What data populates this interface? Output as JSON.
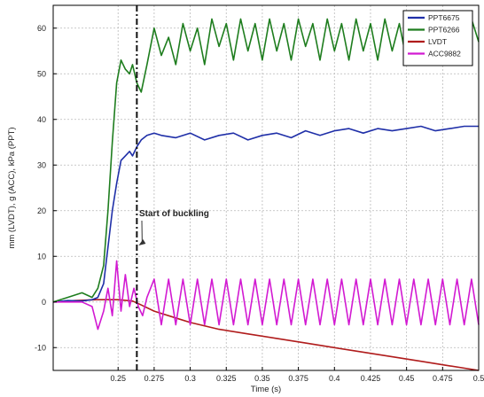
{
  "chart_data": {
    "type": "line",
    "xlabel": "Time (s)",
    "ylabel": "mm (LVDT), g (ACC), kPa (PPT)",
    "xlim": [
      0.205,
      0.5
    ],
    "ylim": [
      -15,
      65
    ],
    "xticks": [
      0.25,
      0.275,
      0.3,
      0.325,
      0.35,
      0.375,
      0.4,
      0.425,
      0.45,
      0.475,
      0.5
    ],
    "xtick_labels": [
      "0.25",
      "0.275",
      "0.3",
      "0.325",
      "0.35",
      "0.375",
      "0.4",
      "0.425",
      "0.45",
      "0.475",
      "0.5"
    ],
    "yticks": [
      -10,
      0,
      10,
      20,
      30,
      40,
      50,
      60
    ],
    "ytick_labels": [
      "-10",
      "0",
      "10",
      "20",
      "30",
      "40",
      "50",
      "60"
    ],
    "grid": true,
    "legend_position": "top-right",
    "annotation": {
      "text": "Start of buckling",
      "x": 0.263
    },
    "series": [
      {
        "name": "PPT6675",
        "color": "#1f2fa8",
        "x": [
          0.205,
          0.215,
          0.225,
          0.232,
          0.236,
          0.24,
          0.243,
          0.246,
          0.249,
          0.252,
          0.255,
          0.258,
          0.26,
          0.263,
          0.266,
          0.27,
          0.275,
          0.28,
          0.29,
          0.3,
          0.31,
          0.32,
          0.33,
          0.34,
          0.35,
          0.36,
          0.37,
          0.38,
          0.39,
          0.4,
          0.41,
          0.42,
          0.43,
          0.44,
          0.45,
          0.46,
          0.47,
          0.48,
          0.49,
          0.5
        ],
        "y": [
          0,
          0.3,
          0.2,
          0.5,
          1,
          4,
          12,
          20,
          26,
          31,
          32,
          33,
          32,
          34,
          35.5,
          36.5,
          37,
          36.5,
          36,
          37,
          35.5,
          36.5,
          37,
          35.5,
          36.5,
          37,
          36,
          37.5,
          36.5,
          37.5,
          38,
          37,
          38,
          37.5,
          38,
          38.5,
          37.5,
          38,
          38.5,
          38.5
        ]
      },
      {
        "name": "PPT6266",
        "color": "#1e7d1e",
        "x": [
          0.205,
          0.215,
          0.225,
          0.232,
          0.236,
          0.24,
          0.243,
          0.246,
          0.249,
          0.252,
          0.255,
          0.258,
          0.26,
          0.263,
          0.266,
          0.27,
          0.275,
          0.28,
          0.285,
          0.29,
          0.295,
          0.3,
          0.305,
          0.31,
          0.315,
          0.32,
          0.325,
          0.33,
          0.335,
          0.34,
          0.345,
          0.35,
          0.355,
          0.36,
          0.365,
          0.37,
          0.375,
          0.38,
          0.385,
          0.39,
          0.395,
          0.4,
          0.405,
          0.41,
          0.415,
          0.42,
          0.425,
          0.43,
          0.435,
          0.44,
          0.445,
          0.45,
          0.455,
          0.46,
          0.465,
          0.47,
          0.475,
          0.48,
          0.485,
          0.49,
          0.495,
          0.5
        ],
        "y": [
          0,
          1,
          2,
          1,
          3,
          8,
          20,
          35,
          48,
          53,
          51,
          50,
          52,
          48,
          46,
          52,
          60,
          54,
          58,
          52,
          61,
          55,
          60,
          52,
          62,
          56,
          61,
          53,
          62,
          55,
          61,
          53,
          62,
          55,
          61,
          53,
          62,
          56,
          61,
          53,
          62,
          55,
          61,
          53,
          62,
          55,
          61,
          53,
          62,
          55,
          61,
          53,
          62,
          55,
          61,
          53,
          62,
          55,
          61,
          53,
          62,
          57
        ]
      },
      {
        "name": "LVDT",
        "color": "#b01c1c",
        "x": [
          0.205,
          0.22,
          0.235,
          0.25,
          0.26,
          0.265,
          0.275,
          0.29,
          0.3,
          0.32,
          0.34,
          0.36,
          0.38,
          0.4,
          0.42,
          0.44,
          0.46,
          0.48,
          0.5
        ],
        "y": [
          0,
          0.3,
          0.5,
          0.5,
          0.2,
          -0.5,
          -2,
          -3.5,
          -4.5,
          -6,
          -7,
          -8,
          -9,
          -10,
          -11,
          -12,
          -13,
          -14,
          -15
        ]
      },
      {
        "name": "ACC9882",
        "color": "#d21ad2",
        "x": [
          0.205,
          0.215,
          0.225,
          0.232,
          0.236,
          0.24,
          0.243,
          0.246,
          0.249,
          0.252,
          0.255,
          0.258,
          0.261,
          0.264,
          0.267,
          0.27,
          0.275,
          0.28,
          0.285,
          0.29,
          0.295,
          0.3,
          0.305,
          0.31,
          0.315,
          0.32,
          0.325,
          0.33,
          0.335,
          0.34,
          0.345,
          0.35,
          0.355,
          0.36,
          0.365,
          0.37,
          0.375,
          0.38,
          0.385,
          0.39,
          0.395,
          0.4,
          0.405,
          0.41,
          0.415,
          0.42,
          0.425,
          0.43,
          0.435,
          0.44,
          0.445,
          0.45,
          0.455,
          0.46,
          0.465,
          0.47,
          0.475,
          0.48,
          0.485,
          0.49,
          0.495,
          0.5
        ],
        "y": [
          0,
          0,
          0,
          -1,
          -6,
          -2,
          3,
          -3,
          9,
          -2,
          6,
          -1,
          3,
          -1,
          -3,
          1,
          5,
          -5,
          5,
          -5,
          5,
          -5,
          5,
          -5,
          5,
          -5,
          5,
          -5,
          5,
          -5,
          5,
          -5,
          5,
          -5,
          5,
          -5,
          5,
          -5,
          5,
          -5,
          5,
          -5,
          5,
          -5,
          5,
          -5,
          5,
          -5,
          5,
          -5,
          5,
          -5,
          5,
          -5,
          5,
          -5,
          5,
          -5,
          5,
          -5,
          5,
          -5
        ]
      }
    ]
  }
}
